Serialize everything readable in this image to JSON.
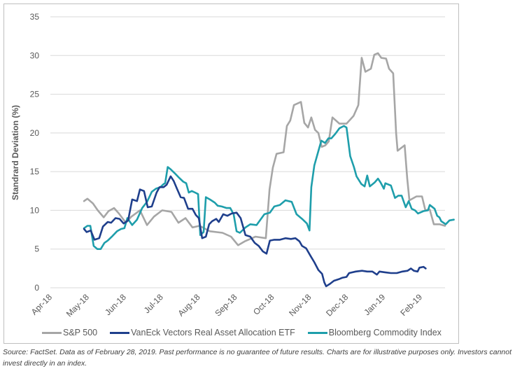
{
  "chart_data": {
    "type": "line",
    "title": "",
    "xlabel": "",
    "ylabel": "Standrard Deviation (%)",
    "ylim": [
      0,
      35
    ],
    "yticks": [
      0,
      5,
      10,
      15,
      20,
      25,
      30,
      35
    ],
    "ytick_labels": [
      "0",
      "5",
      "10",
      "15",
      "20",
      "25",
      "30",
      "35"
    ],
    "xlim": [
      0,
      10.9
    ],
    "x_unit": "months since Apr-18",
    "xtick_labels": [
      "Apr-18",
      "May-18",
      "Jun-18",
      "Jul-18",
      "Aug-18",
      "Sep-18",
      "Oct-18",
      "Nov-18",
      "Dec-18",
      "Jan-19",
      "Feb-19"
    ],
    "grid": true,
    "legend_position": "bottom",
    "series": [
      {
        "name": "S&P 500",
        "color": "#a6a6a6",
        "points": [
          [
            0.91,
            11.2
          ],
          [
            1.0,
            11.5
          ],
          [
            1.15,
            10.9
          ],
          [
            1.28,
            10.0
          ],
          [
            1.44,
            9.1
          ],
          [
            1.57,
            9.9
          ],
          [
            1.72,
            10.3
          ],
          [
            1.85,
            9.6
          ],
          [
            2.04,
            8.4
          ],
          [
            2.19,
            9.2
          ],
          [
            2.42,
            10.0
          ],
          [
            2.61,
            8.1
          ],
          [
            2.8,
            9.2
          ],
          [
            3.02,
            10.0
          ],
          [
            3.27,
            9.8
          ],
          [
            3.46,
            8.4
          ],
          [
            3.65,
            9.0
          ],
          [
            3.84,
            7.8
          ],
          [
            4.03,
            8.0
          ],
          [
            4.31,
            7.3
          ],
          [
            4.65,
            7.1
          ],
          [
            4.88,
            6.6
          ],
          [
            5.07,
            5.5
          ],
          [
            5.25,
            6.0
          ],
          [
            5.54,
            6.6
          ],
          [
            5.82,
            6.4
          ],
          [
            5.92,
            12.7
          ],
          [
            6.01,
            15.5
          ],
          [
            6.11,
            17.3
          ],
          [
            6.3,
            17.5
          ],
          [
            6.39,
            20.9
          ],
          [
            6.48,
            21.6
          ],
          [
            6.58,
            23.6
          ],
          [
            6.77,
            24.0
          ],
          [
            6.86,
            21.3
          ],
          [
            6.96,
            20.7
          ],
          [
            7.05,
            22.0
          ],
          [
            7.15,
            20.4
          ],
          [
            7.24,
            20.0
          ],
          [
            7.33,
            18.2
          ],
          [
            7.43,
            18.4
          ],
          [
            7.52,
            18.9
          ],
          [
            7.62,
            22.0
          ],
          [
            7.81,
            21.2
          ],
          [
            8.0,
            21.2
          ],
          [
            8.19,
            22.2
          ],
          [
            8.32,
            23.6
          ],
          [
            8.41,
            29.7
          ],
          [
            8.51,
            27.9
          ],
          [
            8.66,
            28.3
          ],
          [
            8.75,
            30.1
          ],
          [
            8.85,
            30.3
          ],
          [
            8.94,
            29.7
          ],
          [
            9.07,
            29.6
          ],
          [
            9.15,
            28.3
          ],
          [
            9.26,
            27.7
          ],
          [
            9.34,
            20.0
          ],
          [
            9.38,
            17.7
          ],
          [
            9.57,
            18.4
          ],
          [
            9.64,
            14.1
          ],
          [
            9.7,
            11.3
          ],
          [
            9.89,
            11.8
          ],
          [
            10.04,
            11.8
          ],
          [
            10.13,
            10.0
          ],
          [
            10.25,
            10.1
          ],
          [
            10.36,
            8.2
          ],
          [
            10.51,
            8.2
          ],
          [
            10.66,
            8.0
          ]
        ]
      },
      {
        "name": "VanEck Vectors Real Asset Allocation ETF",
        "color": "#1f3f8c",
        "points": [
          [
            0.91,
            7.6
          ],
          [
            0.98,
            7.2
          ],
          [
            1.09,
            7.4
          ],
          [
            1.19,
            6.2
          ],
          [
            1.32,
            6.4
          ],
          [
            1.42,
            7.9
          ],
          [
            1.55,
            8.5
          ],
          [
            1.64,
            8.4
          ],
          [
            1.76,
            9.0
          ],
          [
            1.87,
            8.9
          ],
          [
            1.98,
            8.3
          ],
          [
            2.1,
            8.7
          ],
          [
            2.21,
            11.4
          ],
          [
            2.34,
            11.2
          ],
          [
            2.42,
            12.7
          ],
          [
            2.53,
            12.5
          ],
          [
            2.63,
            10.4
          ],
          [
            2.74,
            10.5
          ],
          [
            2.87,
            12.3
          ],
          [
            2.95,
            13.0
          ],
          [
            3.06,
            13.0
          ],
          [
            3.14,
            13.3
          ],
          [
            3.25,
            14.4
          ],
          [
            3.33,
            13.8
          ],
          [
            3.42,
            12.8
          ],
          [
            3.52,
            11.7
          ],
          [
            3.61,
            11.6
          ],
          [
            3.72,
            10.2
          ],
          [
            3.84,
            10.2
          ],
          [
            3.93,
            9.4
          ],
          [
            4.01,
            9.0
          ],
          [
            4.1,
            6.4
          ],
          [
            4.2,
            6.6
          ],
          [
            4.29,
            8.2
          ],
          [
            4.37,
            8.6
          ],
          [
            4.48,
            8.9
          ],
          [
            4.55,
            8.5
          ],
          [
            4.67,
            9.5
          ],
          [
            4.78,
            9.3
          ],
          [
            4.9,
            9.6
          ],
          [
            5.03,
            9.7
          ],
          [
            5.14,
            9.0
          ],
          [
            5.27,
            6.8
          ],
          [
            5.4,
            6.6
          ],
          [
            5.52,
            5.8
          ],
          [
            5.63,
            5.4
          ],
          [
            5.74,
            4.7
          ],
          [
            5.84,
            4.4
          ],
          [
            5.93,
            6.1
          ],
          [
            6.05,
            6.2
          ],
          [
            6.2,
            6.2
          ],
          [
            6.35,
            6.4
          ],
          [
            6.5,
            6.3
          ],
          [
            6.62,
            6.4
          ],
          [
            6.73,
            6.0
          ],
          [
            6.8,
            5.4
          ],
          [
            6.91,
            5.1
          ],
          [
            7.03,
            4.1
          ],
          [
            7.13,
            3.3
          ],
          [
            7.24,
            2.3
          ],
          [
            7.34,
            1.8
          ],
          [
            7.4,
            0.7
          ],
          [
            7.45,
            0.2
          ],
          [
            7.55,
            0.5
          ],
          [
            7.66,
            0.9
          ],
          [
            7.79,
            1.1
          ],
          [
            7.89,
            1.3
          ],
          [
            8.0,
            1.4
          ],
          [
            8.07,
            1.9
          ],
          [
            8.25,
            2.1
          ],
          [
            8.42,
            2.2
          ],
          [
            8.56,
            2.1
          ],
          [
            8.7,
            2.1
          ],
          [
            8.82,
            1.7
          ],
          [
            8.89,
            2.1
          ],
          [
            9.04,
            2.0
          ],
          [
            9.2,
            1.9
          ],
          [
            9.36,
            1.9
          ],
          [
            9.51,
            2.1
          ],
          [
            9.65,
            2.2
          ],
          [
            9.74,
            2.5
          ],
          [
            9.82,
            2.2
          ],
          [
            9.92,
            2.1
          ],
          [
            9.97,
            2.6
          ],
          [
            10.08,
            2.7
          ],
          [
            10.14,
            2.5
          ]
        ]
      },
      {
        "name": "Bloomberg Commodity Index",
        "color": "#1e9eab",
        "points": [
          [
            0.91,
            7.7
          ],
          [
            1.0,
            8.0
          ],
          [
            1.08,
            8.0
          ],
          [
            1.17,
            5.4
          ],
          [
            1.27,
            5.0
          ],
          [
            1.36,
            5.0
          ],
          [
            1.46,
            5.8
          ],
          [
            1.55,
            6.1
          ],
          [
            1.68,
            6.7
          ],
          [
            1.8,
            7.3
          ],
          [
            1.91,
            7.6
          ],
          [
            2.0,
            7.7
          ],
          [
            2.08,
            9.0
          ],
          [
            2.21,
            8.1
          ],
          [
            2.34,
            8.8
          ],
          [
            2.48,
            10.3
          ],
          [
            2.61,
            11.1
          ],
          [
            2.74,
            12.4
          ],
          [
            2.85,
            12.8
          ],
          [
            2.97,
            13.0
          ],
          [
            3.06,
            13.4
          ],
          [
            3.1,
            13.5
          ],
          [
            3.17,
            15.6
          ],
          [
            3.25,
            15.3
          ],
          [
            3.36,
            14.8
          ],
          [
            3.48,
            14.2
          ],
          [
            3.59,
            13.7
          ],
          [
            3.67,
            13.5
          ],
          [
            3.74,
            12.3
          ],
          [
            3.82,
            12.5
          ],
          [
            3.91,
            12.3
          ],
          [
            3.99,
            12.1
          ],
          [
            4.05,
            6.8
          ],
          [
            4.14,
            7.2
          ],
          [
            4.2,
            11.7
          ],
          [
            4.31,
            11.4
          ],
          [
            4.44,
            11.0
          ],
          [
            4.52,
            10.6
          ],
          [
            4.63,
            10.5
          ],
          [
            4.76,
            10.3
          ],
          [
            4.86,
            10.3
          ],
          [
            4.95,
            9.5
          ],
          [
            5.03,
            7.3
          ],
          [
            5.12,
            7.1
          ],
          [
            5.27,
            7.8
          ],
          [
            5.4,
            8.2
          ],
          [
            5.57,
            8.1
          ],
          [
            5.78,
            9.5
          ],
          [
            5.93,
            9.7
          ],
          [
            6.05,
            10.5
          ],
          [
            6.2,
            10.7
          ],
          [
            6.35,
            11.3
          ],
          [
            6.52,
            11.1
          ],
          [
            6.65,
            9.5
          ],
          [
            6.8,
            8.9
          ],
          [
            6.93,
            8.3
          ],
          [
            7.0,
            7.4
          ],
          [
            7.05,
            13.0
          ],
          [
            7.13,
            15.8
          ],
          [
            7.23,
            17.5
          ],
          [
            7.32,
            19.0
          ],
          [
            7.42,
            18.7
          ],
          [
            7.51,
            19.3
          ],
          [
            7.59,
            19.3
          ],
          [
            7.7,
            19.9
          ],
          [
            7.81,
            20.6
          ],
          [
            7.93,
            20.9
          ],
          [
            8.0,
            20.7
          ],
          [
            8.1,
            17.0
          ],
          [
            8.2,
            15.6
          ],
          [
            8.27,
            14.4
          ],
          [
            8.4,
            13.4
          ],
          [
            8.49,
            13.1
          ],
          [
            8.56,
            14.5
          ],
          [
            8.63,
            13.1
          ],
          [
            8.76,
            13.6
          ],
          [
            8.85,
            14.1
          ],
          [
            8.92,
            13.6
          ],
          [
            9.01,
            12.8
          ],
          [
            9.05,
            13.5
          ],
          [
            9.2,
            13.2
          ],
          [
            9.31,
            11.6
          ],
          [
            9.4,
            11.9
          ],
          [
            9.49,
            11.9
          ],
          [
            9.6,
            10.4
          ],
          [
            9.68,
            11.2
          ],
          [
            9.76,
            10.2
          ],
          [
            9.85,
            10.0
          ],
          [
            9.93,
            9.6
          ],
          [
            10.08,
            9.9
          ],
          [
            10.2,
            10.0
          ],
          [
            10.25,
            10.7
          ],
          [
            10.38,
            10.2
          ],
          [
            10.45,
            9.3
          ],
          [
            10.51,
            9.1
          ],
          [
            10.56,
            8.6
          ],
          [
            10.68,
            8.2
          ],
          [
            10.78,
            8.7
          ],
          [
            10.9,
            8.8
          ]
        ]
      }
    ]
  },
  "footer": {
    "source_note": "Source: FactSet. Data as of February 28, 2019. Past performance is no guarantee of future results. Charts are for illustrative purposes only. Investors cannot invest directly in an index."
  }
}
